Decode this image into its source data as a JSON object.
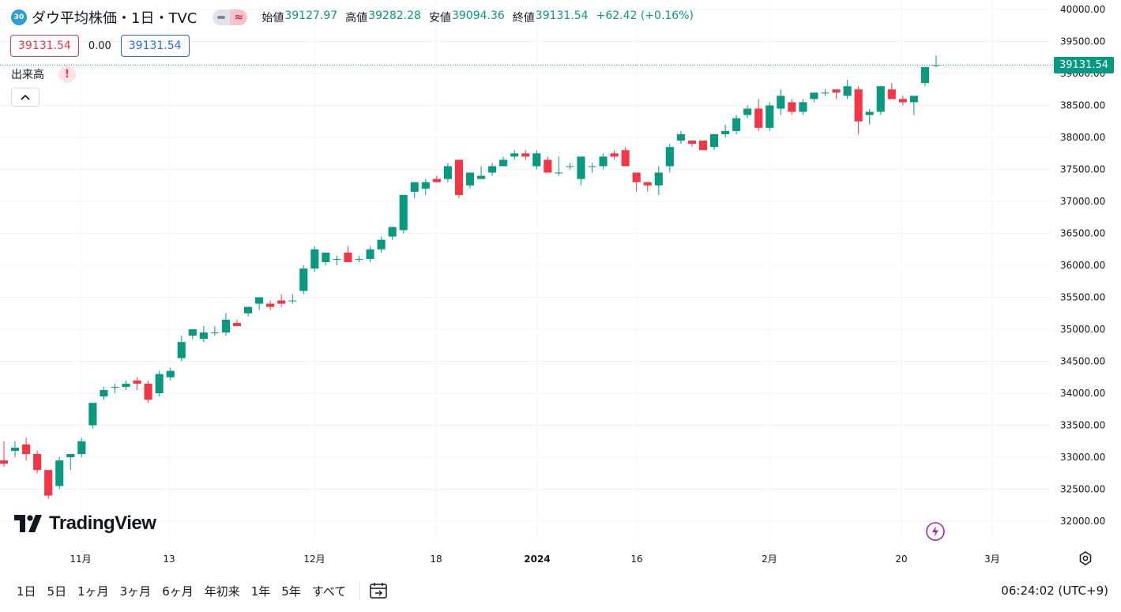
{
  "header": {
    "symbol_badge": "30",
    "title": "ダウ平均株価・1日・TVC",
    "open_label": "始値",
    "open": "39127.97",
    "high_label": "高値",
    "high": "39282.28",
    "low_label": "安値",
    "low": "39094.36",
    "close_label": "終値",
    "close": "39131.54",
    "change": "+62.42 (+0.16%)"
  },
  "prices": {
    "sell": "39131.54",
    "spread": "0.00",
    "buy": "39131.54"
  },
  "indicator": {
    "label": "出来高",
    "warning": "!"
  },
  "logo": "TradingView",
  "price_badge": "39131.54",
  "timeframes": [
    "1日",
    "5日",
    "1ヶ月",
    "3ヶ月",
    "6ヶ月",
    "年初来",
    "1年",
    "5年",
    "すべて"
  ],
  "clock": "06:24:02 (UTC+9)",
  "colors": {
    "up": "#089981",
    "down": "#f23645",
    "accent": "#2962ff"
  },
  "chart_data": {
    "type": "candlestick",
    "y_axis": {
      "ticks": [
        "32000.00",
        "32500.00",
        "33000.00",
        "33500.00",
        "34000.00",
        "34500.00",
        "35000.00",
        "35500.00",
        "36000.00",
        "36500.00",
        "37000.00",
        "37500.00",
        "38000.00",
        "38500.00",
        "39000.00",
        "39500.00",
        "40000.00"
      ],
      "ylim": [
        31800,
        40050
      ]
    },
    "x_axis": {
      "ticks": [
        "11月",
        "13",
        "12月",
        "18",
        "2024",
        "16",
        "2月",
        "20",
        "3月"
      ]
    },
    "grid": true,
    "last_price": 39131.54,
    "candles": [
      {
        "o": 32950,
        "h": 33250,
        "l": 32850,
        "c": 32900
      },
      {
        "o": 33100,
        "h": 33250,
        "l": 33000,
        "c": 33150
      },
      {
        "o": 33200,
        "h": 33300,
        "l": 32950,
        "c": 33050
      },
      {
        "o": 33050,
        "h": 33100,
        "l": 32750,
        "c": 32800
      },
      {
        "o": 32800,
        "h": 32800,
        "l": 32350,
        "c": 32400
      },
      {
        "o": 32550,
        "h": 33000,
        "l": 32500,
        "c": 32950
      },
      {
        "o": 33000,
        "h": 33050,
        "l": 32800,
        "c": 33050
      },
      {
        "o": 33050,
        "h": 33300,
        "l": 33000,
        "c": 33250
      },
      {
        "o": 33500,
        "h": 33850,
        "l": 33450,
        "c": 33850
      },
      {
        "o": 33950,
        "h": 34100,
        "l": 33900,
        "c": 34050
      },
      {
        "o": 34100,
        "h": 34150,
        "l": 34000,
        "c": 34100
      },
      {
        "o": 34100,
        "h": 34200,
        "l": 34050,
        "c": 34150
      },
      {
        "o": 34200,
        "h": 34250,
        "l": 34050,
        "c": 34150
      },
      {
        "o": 34150,
        "h": 34200,
        "l": 33850,
        "c": 33900
      },
      {
        "o": 34000,
        "h": 34350,
        "l": 33950,
        "c": 34300
      },
      {
        "o": 34250,
        "h": 34400,
        "l": 34200,
        "c": 34350
      },
      {
        "o": 34550,
        "h": 34900,
        "l": 34500,
        "c": 34800
      },
      {
        "o": 34900,
        "h": 35000,
        "l": 34850,
        "c": 35000
      },
      {
        "o": 34850,
        "h": 35050,
        "l": 34800,
        "c": 34950
      },
      {
        "o": 34950,
        "h": 35050,
        "l": 34900,
        "c": 34950
      },
      {
        "o": 34950,
        "h": 35250,
        "l": 34900,
        "c": 35150
      },
      {
        "o": 35100,
        "h": 35150,
        "l": 35050,
        "c": 35050
      },
      {
        "o": 35250,
        "h": 35350,
        "l": 35200,
        "c": 35350
      },
      {
        "o": 35400,
        "h": 35500,
        "l": 35300,
        "c": 35500
      },
      {
        "o": 35400,
        "h": 35450,
        "l": 35300,
        "c": 35350
      },
      {
        "o": 35450,
        "h": 35550,
        "l": 35350,
        "c": 35400
      },
      {
        "o": 35450,
        "h": 35550,
        "l": 35400,
        "c": 35450
      },
      {
        "o": 35600,
        "h": 36000,
        "l": 35550,
        "c": 35950
      },
      {
        "o": 35950,
        "h": 36300,
        "l": 35900,
        "c": 36250
      },
      {
        "o": 36050,
        "h": 36200,
        "l": 36000,
        "c": 36200
      },
      {
        "o": 36100,
        "h": 36150,
        "l": 36000,
        "c": 36100
      },
      {
        "o": 36200,
        "h": 36300,
        "l": 36050,
        "c": 36050
      },
      {
        "o": 36100,
        "h": 36150,
        "l": 36050,
        "c": 36100
      },
      {
        "o": 36100,
        "h": 36300,
        "l": 36050,
        "c": 36250
      },
      {
        "o": 36250,
        "h": 36450,
        "l": 36200,
        "c": 36400
      },
      {
        "o": 36450,
        "h": 36600,
        "l": 36400,
        "c": 36600
      },
      {
        "o": 36550,
        "h": 37100,
        "l": 36500,
        "c": 37100
      },
      {
        "o": 37150,
        "h": 37300,
        "l": 37050,
        "c": 37300
      },
      {
        "o": 37200,
        "h": 37350,
        "l": 37100,
        "c": 37300
      },
      {
        "o": 37350,
        "h": 37400,
        "l": 37300,
        "c": 37300
      },
      {
        "o": 37350,
        "h": 37600,
        "l": 37300,
        "c": 37550
      },
      {
        "o": 37650,
        "h": 37650,
        "l": 37050,
        "c": 37100
      },
      {
        "o": 37250,
        "h": 37450,
        "l": 37200,
        "c": 37450
      },
      {
        "o": 37350,
        "h": 37550,
        "l": 37350,
        "c": 37400
      },
      {
        "o": 37450,
        "h": 37600,
        "l": 37400,
        "c": 37550
      },
      {
        "o": 37550,
        "h": 37700,
        "l": 37550,
        "c": 37650
      },
      {
        "o": 37700,
        "h": 37800,
        "l": 37650,
        "c": 37750
      },
      {
        "o": 37750,
        "h": 37800,
        "l": 37650,
        "c": 37700
      },
      {
        "o": 37550,
        "h": 37800,
        "l": 37500,
        "c": 37750
      },
      {
        "o": 37650,
        "h": 37700,
        "l": 37450,
        "c": 37450
      },
      {
        "o": 37450,
        "h": 37700,
        "l": 37400,
        "c": 37450
      },
      {
        "o": 37550,
        "h": 37600,
        "l": 37500,
        "c": 37550
      },
      {
        "o": 37350,
        "h": 37700,
        "l": 37250,
        "c": 37700
      },
      {
        "o": 37550,
        "h": 37600,
        "l": 37450,
        "c": 37550
      },
      {
        "o": 37550,
        "h": 37750,
        "l": 37500,
        "c": 37700
      },
      {
        "o": 37750,
        "h": 37800,
        "l": 37650,
        "c": 37700
      },
      {
        "o": 37800,
        "h": 37850,
        "l": 37550,
        "c": 37550
      },
      {
        "o": 37450,
        "h": 37450,
        "l": 37150,
        "c": 37300
      },
      {
        "o": 37300,
        "h": 37300,
        "l": 37150,
        "c": 37250
      },
      {
        "o": 37250,
        "h": 37550,
        "l": 37100,
        "c": 37450
      },
      {
        "o": 37550,
        "h": 37900,
        "l": 37450,
        "c": 37850
      },
      {
        "o": 37950,
        "h": 38100,
        "l": 37900,
        "c": 38050
      },
      {
        "o": 37950,
        "h": 37950,
        "l": 37850,
        "c": 37900
      },
      {
        "o": 37950,
        "h": 37950,
        "l": 37800,
        "c": 37800
      },
      {
        "o": 37850,
        "h": 38050,
        "l": 37800,
        "c": 38050
      },
      {
        "o": 38050,
        "h": 38200,
        "l": 38000,
        "c": 38100
      },
      {
        "o": 38100,
        "h": 38350,
        "l": 38050,
        "c": 38300
      },
      {
        "o": 38350,
        "h": 38500,
        "l": 38300,
        "c": 38450
      },
      {
        "o": 38450,
        "h": 38600,
        "l": 38100,
        "c": 38150
      },
      {
        "o": 38150,
        "h": 38550,
        "l": 38100,
        "c": 38500
      },
      {
        "o": 38450,
        "h": 38750,
        "l": 38350,
        "c": 38650
      },
      {
        "o": 38550,
        "h": 38600,
        "l": 38350,
        "c": 38400
      },
      {
        "o": 38400,
        "h": 38600,
        "l": 38350,
        "c": 38550
      },
      {
        "o": 38600,
        "h": 38700,
        "l": 38550,
        "c": 38700
      },
      {
        "o": 38700,
        "h": 38750,
        "l": 38650,
        "c": 38700
      },
      {
        "o": 38750,
        "h": 38750,
        "l": 38600,
        "c": 38700
      },
      {
        "o": 38650,
        "h": 38900,
        "l": 38600,
        "c": 38800
      },
      {
        "o": 38750,
        "h": 38800,
        "l": 38050,
        "c": 38250
      },
      {
        "o": 38350,
        "h": 38450,
        "l": 38200,
        "c": 38400
      },
      {
        "o": 38400,
        "h": 38800,
        "l": 38350,
        "c": 38800
      },
      {
        "o": 38750,
        "h": 38850,
        "l": 38600,
        "c": 38600
      },
      {
        "o": 38600,
        "h": 38650,
        "l": 38500,
        "c": 38550
      },
      {
        "o": 38550,
        "h": 38650,
        "l": 38350,
        "c": 38650
      },
      {
        "o": 38850,
        "h": 39100,
        "l": 38800,
        "c": 39100
      },
      {
        "o": 39127.97,
        "h": 39282.28,
        "l": 39094.36,
        "c": 39131.54
      }
    ]
  }
}
